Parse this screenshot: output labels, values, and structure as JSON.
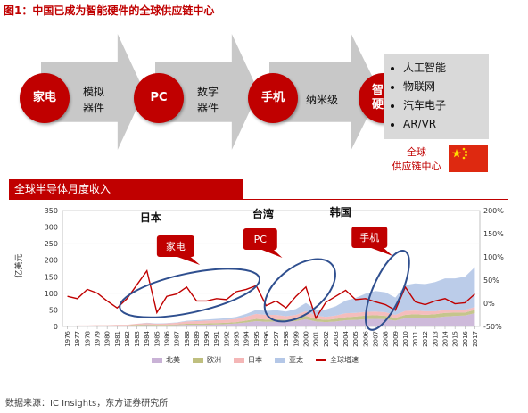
{
  "figure": {
    "title": "图1：中国已成为智能硬件的全球供应链中心",
    "source": "数据来源：IC Insights，东方证券研究所"
  },
  "flow": {
    "steps": [
      {
        "circle": "家电",
        "label": "模拟\n器件"
      },
      {
        "circle": "PC",
        "label": "数字\n器件"
      },
      {
        "circle": "手机",
        "label": "纳米级"
      },
      {
        "circle": "智能\n硬件",
        "label": ""
      }
    ],
    "applications": [
      "人工智能",
      "物联网",
      "汽车电子",
      "AR/VR"
    ],
    "supply_chain_label": "全球\n供应链中心"
  },
  "chart_data": {
    "type": "area",
    "title": "全球半导体月度收入",
    "ylabel": "亿美元",
    "ylim": [
      0,
      350
    ],
    "yticks": [
      0,
      50,
      100,
      150,
      200,
      250,
      300,
      350
    ],
    "y2lim": [
      -0.5,
      2.0
    ],
    "y2ticks": [
      "-50%",
      "0%",
      "50%",
      "100%",
      "150%",
      "200%"
    ],
    "x_years": [
      "1976",
      "1977",
      "1978",
      "1979",
      "1980",
      "1981",
      "1982",
      "1983",
      "1984",
      "1985",
      "1986",
      "1987",
      "1988",
      "1989",
      "1990",
      "1991",
      "1992",
      "1993",
      "1994",
      "1995",
      "1996",
      "1997",
      "1998",
      "1999",
      "2000",
      "2001",
      "2002",
      "2003",
      "2004",
      "2005",
      "2006",
      "2007",
      "2008",
      "2009",
      "2010",
      "2011",
      "2012",
      "2013",
      "2014",
      "2015",
      "2016",
      "2017"
    ],
    "series": [
      {
        "name": "北美",
        "color": "#c9b2d6",
        "values": [
          1,
          1,
          1,
          2,
          2,
          2,
          2,
          3,
          4,
          3,
          3,
          4,
          5,
          5,
          5,
          6,
          7,
          9,
          12,
          16,
          14,
          15,
          14,
          16,
          22,
          15,
          13,
          15,
          19,
          20,
          22,
          23,
          22,
          18,
          25,
          26,
          25,
          27,
          30,
          32,
          33,
          40
        ]
      },
      {
        "name": "欧洲",
        "color": "#bfbf7f",
        "values": [
          0,
          1,
          1,
          1,
          1,
          1,
          1,
          2,
          2,
          2,
          2,
          2,
          3,
          3,
          4,
          4,
          4,
          4,
          6,
          7,
          7,
          7,
          7,
          8,
          10,
          8,
          7,
          8,
          9,
          10,
          11,
          11,
          10,
          8,
          10,
          11,
          10,
          10,
          11,
          10,
          9,
          10
        ]
      },
      {
        "name": "日本",
        "color": "#f4b6b6",
        "values": [
          0,
          1,
          1,
          1,
          1,
          2,
          2,
          3,
          4,
          3,
          4,
          5,
          7,
          8,
          9,
          9,
          9,
          10,
          12,
          15,
          14,
          13,
          10,
          11,
          14,
          10,
          9,
          10,
          12,
          11,
          11,
          11,
          11,
          9,
          12,
          11,
          11,
          9,
          9,
          8,
          8,
          9
        ]
      },
      {
        "name": "亚太",
        "color": "#b4c7e7",
        "values": [
          0,
          0,
          0,
          0,
          0,
          0,
          0,
          0,
          1,
          1,
          1,
          1,
          2,
          3,
          3,
          4,
          5,
          6,
          8,
          12,
          12,
          14,
          14,
          18,
          25,
          18,
          22,
          28,
          38,
          45,
          55,
          62,
          60,
          52,
          78,
          82,
          82,
          88,
          95,
          95,
          100,
          120
        ]
      }
    ],
    "growth": {
      "name": "全球增速",
      "color": "#c00000",
      "values": [
        0.15,
        0.1,
        0.3,
        0.22,
        0.05,
        -0.1,
        0.1,
        0.4,
        0.7,
        -0.2,
        0.15,
        0.2,
        0.35,
        0.05,
        0.05,
        0.1,
        0.08,
        0.25,
        0.3,
        0.38,
        -0.05,
        0.05,
        -0.1,
        0.15,
        0.35,
        -0.32,
        0.02,
        0.15,
        0.28,
        0.08,
        0.1,
        0.03,
        -0.03,
        -0.15,
        0.35,
        0.03,
        -0.03,
        0.05,
        0.1,
        -0.01,
        0.01,
        0.2
      ]
    },
    "annotations": [
      {
        "region": "日本",
        "tag": "家电"
      },
      {
        "region": "台湾",
        "tag": "PC"
      },
      {
        "region": "韩国",
        "tag": "手机"
      }
    ]
  }
}
